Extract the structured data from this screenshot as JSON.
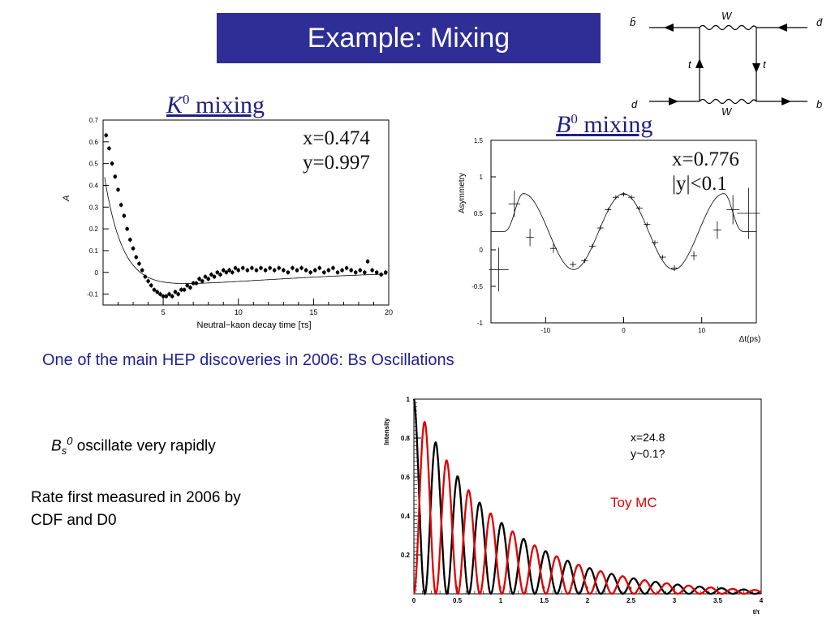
{
  "slide": {
    "title": "Example: Mixing",
    "headline": "One of the main HEP discoveries in 2006: Bs Oscillations",
    "bullet1": {
      "B": "B",
      "s": "s",
      "0": "0",
      "rest": " oscillate very rapidly"
    },
    "bullet2": {
      "line1": "Rate first measured in 2006 by",
      "line2": "CDF and D0"
    },
    "colors": {
      "title_bg": "#2e2e96",
      "headline": "#1f1f96",
      "toy_red": "#e00000"
    }
  },
  "feynman": {
    "labels": {
      "bbar": "b̄",
      "dbar": "d̄",
      "d": "d",
      "b": "b",
      "W_top": "W",
      "W_bottom": "W",
      "t_left": "t",
      "t_right": "t"
    }
  },
  "chart_data": [
    {
      "type": "scatter",
      "title_main": "K",
      "title_sup": "0",
      "title_rest": " mixing",
      "annotations": [
        "x=0.474",
        "y=0.997"
      ],
      "xlabel": "Neutral−kaon decay time [τs]",
      "ylabel": "A",
      "xlim": [
        1,
        20
      ],
      "ylim": [
        -0.15,
        0.7
      ],
      "xticks": [
        5,
        10,
        15,
        20
      ],
      "yticks": [
        -0.1,
        0,
        0.1,
        0.2,
        0.3,
        0.4,
        0.5,
        0.6,
        0.7
      ],
      "points": [
        [
          1.2,
          0.63
        ],
        [
          1.4,
          0.57
        ],
        [
          1.6,
          0.5
        ],
        [
          1.8,
          0.44
        ],
        [
          2.0,
          0.38
        ],
        [
          2.2,
          0.31
        ],
        [
          2.4,
          0.26
        ],
        [
          2.6,
          0.2
        ],
        [
          2.8,
          0.15
        ],
        [
          3.0,
          0.11
        ],
        [
          3.2,
          0.07
        ],
        [
          3.4,
          0.04
        ],
        [
          3.6,
          0.01
        ],
        [
          3.8,
          -0.02
        ],
        [
          4.0,
          -0.04
        ],
        [
          4.2,
          -0.06
        ],
        [
          4.4,
          -0.08
        ],
        [
          4.6,
          -0.09
        ],
        [
          4.8,
          -0.1
        ],
        [
          5.0,
          -0.11
        ],
        [
          5.2,
          -0.11
        ],
        [
          5.4,
          -0.1
        ],
        [
          5.6,
          -0.11
        ],
        [
          5.8,
          -0.09
        ],
        [
          6.0,
          -0.1
        ],
        [
          6.2,
          -0.08
        ],
        [
          6.4,
          -0.08
        ],
        [
          6.6,
          -0.06
        ],
        [
          6.8,
          -0.07
        ],
        [
          7.0,
          -0.05
        ],
        [
          7.2,
          -0.05
        ],
        [
          7.4,
          -0.03
        ],
        [
          7.6,
          -0.04
        ],
        [
          7.8,
          -0.02
        ],
        [
          8.0,
          -0.03
        ],
        [
          8.2,
          -0.01
        ],
        [
          8.4,
          -0.02
        ],
        [
          8.6,
          0.0
        ],
        [
          8.8,
          -0.01
        ],
        [
          9.0,
          0.01
        ],
        [
          9.2,
          0.0
        ],
        [
          9.4,
          0.01
        ],
        [
          9.6,
          0.0
        ],
        [
          9.8,
          0.02
        ],
        [
          10.0,
          0.01
        ],
        [
          10.3,
          0.02
        ],
        [
          10.6,
          0.01
        ],
        [
          10.9,
          0.02
        ],
        [
          11.2,
          0.01
        ],
        [
          11.5,
          0.02
        ],
        [
          11.8,
          0.01
        ],
        [
          12.1,
          0.02
        ],
        [
          12.4,
          0.01
        ],
        [
          12.7,
          0.02
        ],
        [
          13.0,
          0.01
        ],
        [
          13.3,
          0.0
        ],
        [
          13.6,
          0.02
        ],
        [
          13.9,
          0.01
        ],
        [
          14.2,
          0.02
        ],
        [
          14.5,
          0.01
        ],
        [
          14.8,
          0.0
        ],
        [
          15.1,
          0.01
        ],
        [
          15.4,
          0.02
        ],
        [
          15.7,
          0.0
        ],
        [
          16.0,
          0.01
        ],
        [
          16.3,
          0.02
        ],
        [
          16.6,
          0.0
        ],
        [
          16.9,
          0.01
        ],
        [
          17.2,
          0.02
        ],
        [
          17.5,
          0.01
        ],
        [
          17.8,
          0.0
        ],
        [
          18.1,
          0.01
        ],
        [
          18.4,
          0.0
        ],
        [
          18.6,
          0.05
        ],
        [
          18.9,
          0.01
        ],
        [
          19.2,
          0.0
        ],
        [
          19.5,
          -0.01
        ],
        [
          19.8,
          0.0
        ]
      ]
    },
    {
      "type": "scatter",
      "title_main": "B",
      "title_sup": "0",
      "title_rest": " mixing",
      "annotations": [
        "x=0.776",
        "|y|<0.1"
      ],
      "xlabel": "Δt(ps)",
      "ylabel": "Asymmetry",
      "xlim": [
        -17,
        17
      ],
      "ylim": [
        -1,
        1.5
      ],
      "xticks": [
        -10,
        0,
        10
      ],
      "yticks": [
        -1,
        -0.5,
        0,
        0.5,
        1,
        1.5
      ],
      "points": [
        [
          -16,
          -0.27,
          0.3
        ],
        [
          -14,
          0.63,
          0.18
        ],
        [
          -12,
          0.17,
          0.12
        ],
        [
          -9,
          0.02,
          0.06
        ],
        [
          -6.5,
          -0.2,
          0.04
        ],
        [
          -5,
          -0.15,
          0.03
        ],
        [
          -4,
          0.05,
          0.03
        ],
        [
          -3,
          0.3,
          0.03
        ],
        [
          -2,
          0.55,
          0.03
        ],
        [
          -1,
          0.72,
          0.03
        ],
        [
          0,
          0.76,
          0.03
        ],
        [
          1,
          0.72,
          0.03
        ],
        [
          2,
          0.57,
          0.03
        ],
        [
          3,
          0.35,
          0.03
        ],
        [
          4,
          0.1,
          0.03
        ],
        [
          5,
          -0.1,
          0.03
        ],
        [
          6.5,
          -0.25,
          0.04
        ],
        [
          9,
          -0.08,
          0.06
        ],
        [
          12,
          0.27,
          0.12
        ],
        [
          14,
          0.55,
          0.2
        ],
        [
          16,
          0.5,
          0.35
        ]
      ]
    },
    {
      "type": "line",
      "annotations": [
        "x=24.8",
        "y~0.1?"
      ],
      "toy_label": "Toy MC",
      "xlabel": "t/τ",
      "ylabel": "Intensity",
      "xlim": [
        0,
        4
      ],
      "ylim": [
        0,
        1
      ],
      "xtick_labels": [
        "0",
        "0.5",
        "1",
        "1.5",
        "2",
        "2.5",
        "3",
        "3.5",
        "4"
      ],
      "ytick_labels": [
        "0.2",
        "0.4",
        "0.6",
        "0.8",
        "1"
      ],
      "series": [
        {
          "color": "#000000",
          "formula": "0.5·e^(−t)·(1+cos(24.8·t))"
        },
        {
          "color": "#e00000",
          "formula": "0.5·e^(−t)·(1−cos(24.8·t))"
        }
      ]
    }
  ]
}
